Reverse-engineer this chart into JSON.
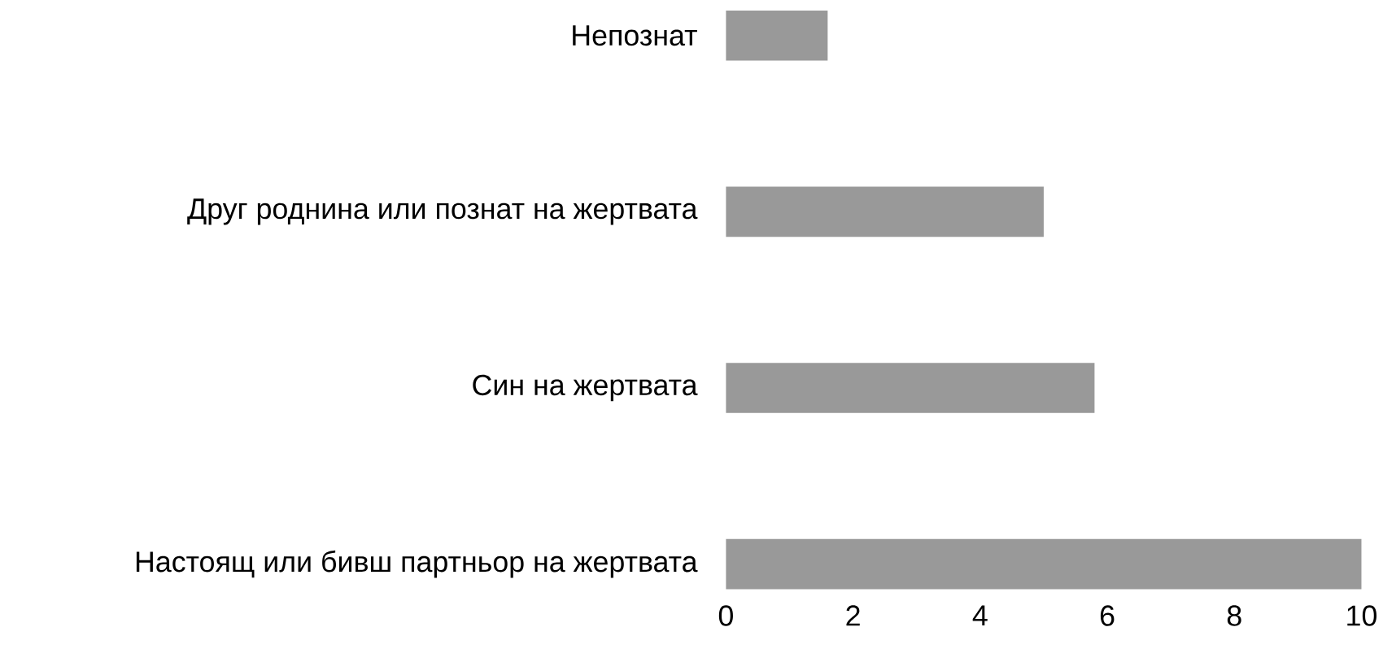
{
  "chart_data": {
    "type": "bar",
    "orientation": "horizontal",
    "categories": [
      "Непознат",
      "Друг роднина или познат на жертвата",
      "Син на жертвата",
      "Настоящ или бивш партньор на жертвата"
    ],
    "values": [
      1.6,
      5,
      5.8,
      10
    ],
    "color": "#999999",
    "xlim": [
      0,
      10
    ],
    "xticks": [
      0,
      2,
      4,
      6,
      8,
      10
    ]
  }
}
